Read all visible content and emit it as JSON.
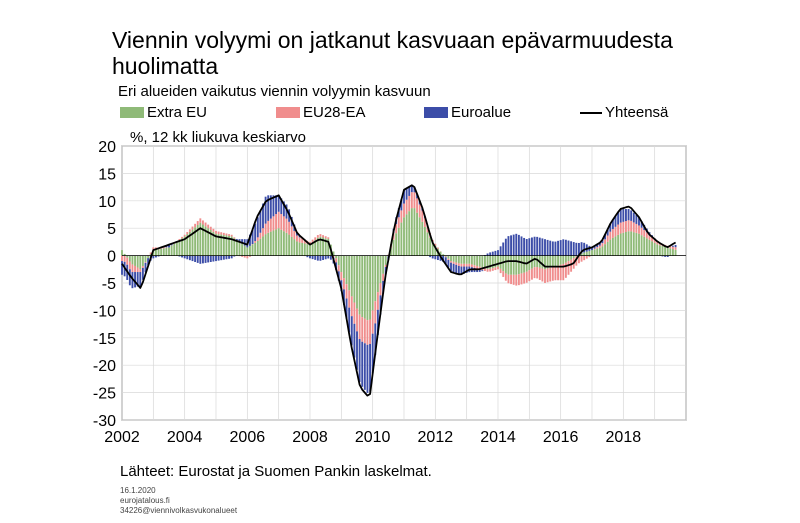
{
  "header": {
    "title": "Viennin volyymi on jatkanut kasvuaan epävarmuudesta huolimatta",
    "subtitle": "Eri alueiden vaikutus viennin volyymin kasvuun",
    "unit_label": "%, 12 kk liukuva keskiarvo"
  },
  "legend": [
    {
      "label": "Extra EU",
      "color": "#8fba78"
    },
    {
      "label": "EU28-EA",
      "color": "#f08d8d"
    },
    {
      "label": "Euroalue",
      "color": "#3c4da8"
    },
    {
      "label": "Yhteensä",
      "color": "#000000"
    }
  ],
  "footer": {
    "source": "Lähteet: Eurostat ja Suomen Pankin laskelmat.",
    "date": "16.1.2020",
    "site": "eurojatalous.fi",
    "code": "34226@viennivolkasvukonalueet"
  },
  "chart_data": {
    "type": "bar",
    "stacked": true,
    "x_range": [
      2002,
      2020
    ],
    "x_ticks": [
      "2002",
      "2004",
      "2006",
      "2008",
      "2010",
      "2012",
      "2014",
      "2016",
      "2018"
    ],
    "ylim": [
      -30,
      20
    ],
    "y_ticks": [
      "20",
      "15",
      "10",
      "5",
      "0",
      "-5",
      "-10",
      "-15",
      "-20",
      "-25",
      "-30"
    ],
    "grid": true,
    "anchors": {
      "t": [
        2002.0,
        2002.3,
        2002.6,
        2003.0,
        2003.5,
        2004.0,
        2004.5,
        2005.0,
        2005.5,
        2006.0,
        2006.3,
        2006.6,
        2007.0,
        2007.3,
        2007.6,
        2008.0,
        2008.3,
        2008.6,
        2009.0,
        2009.3,
        2009.6,
        2009.9,
        2010.1,
        2010.4,
        2010.7,
        2011.0,
        2011.3,
        2011.6,
        2011.9,
        2012.2,
        2012.5,
        2012.8,
        2013.1,
        2013.4,
        2013.7,
        2014.0,
        2014.3,
        2014.6,
        2014.9,
        2015.2,
        2015.5,
        2015.8,
        2016.1,
        2016.4,
        2016.7,
        2017.0,
        2017.3,
        2017.6,
        2017.9,
        2018.2,
        2018.5,
        2018.8,
        2019.1,
        2019.4,
        2019.7
      ],
      "extra": [
        1.0,
        -1.5,
        -2.5,
        1.0,
        1.5,
        3.5,
        6.0,
        4.0,
        3.5,
        1.5,
        2.5,
        4.0,
        5.0,
        4.0,
        2.5,
        2.0,
        3.5,
        3.0,
        -3.0,
        -7.0,
        -11.0,
        -12.0,
        -8.0,
        -2.0,
        3.5,
        7.0,
        9.0,
        6.0,
        2.5,
        0.5,
        -1.0,
        -1.5,
        -1.5,
        -2.0,
        -2.5,
        -2.0,
        -3.5,
        -3.5,
        -3.0,
        -2.0,
        -2.5,
        -2.0,
        -1.5,
        -0.5,
        0.5,
        1.0,
        1.5,
        3.0,
        4.0,
        4.5,
        4.0,
        3.0,
        2.0,
        1.5,
        1.0
      ],
      "eu28": [
        -1.0,
        -1.5,
        -0.5,
        0.5,
        0.0,
        0.3,
        0.8,
        0.5,
        0.3,
        -0.5,
        0.5,
        2.0,
        3.0,
        2.5,
        1.0,
        0.5,
        0.5,
        0.3,
        -1.5,
        -3.5,
        -4.5,
        -4.5,
        -4.0,
        -0.5,
        1.5,
        2.5,
        3.0,
        2.0,
        0.5,
        0.0,
        -0.3,
        -0.5,
        -0.5,
        -0.5,
        -0.5,
        -0.5,
        -1.5,
        -2.0,
        -2.0,
        -2.0,
        -2.5,
        -2.5,
        -3.0,
        -2.0,
        -1.0,
        0.0,
        0.5,
        1.5,
        2.0,
        2.0,
        1.5,
        1.0,
        0.5,
        0.3,
        0.5
      ],
      "euro": [
        -2.5,
        -3.0,
        -2.5,
        -0.5,
        0.5,
        -0.5,
        -1.5,
        -1.0,
        -0.5,
        1.5,
        3.5,
        5.0,
        3.0,
        2.5,
        0.5,
        -0.5,
        -1.0,
        -0.5,
        -2.0,
        -5.0,
        -8.0,
        -9.0,
        -5.5,
        -1.5,
        1.0,
        2.5,
        1.0,
        0.5,
        -0.5,
        -1.0,
        -1.5,
        -1.5,
        -1.0,
        -0.5,
        0.5,
        1.0,
        3.5,
        4.0,
        3.0,
        3.5,
        3.0,
        2.5,
        3.0,
        2.5,
        2.0,
        0.5,
        0.5,
        1.5,
        2.5,
        2.0,
        1.5,
        0.5,
        0.0,
        -0.3,
        0.5
      ],
      "total": [
        -1.5,
        -4.0,
        -6.0,
        1.0,
        2.0,
        3.0,
        5.0,
        3.5,
        3.0,
        2.0,
        7.0,
        10.0,
        11.0,
        8.0,
        4.0,
        2.0,
        3.0,
        2.5,
        -6.0,
        -16.0,
        -24.0,
        -26.0,
        -17.0,
        -4.0,
        5.5,
        12.0,
        13.0,
        8.5,
        2.5,
        -0.5,
        -3.0,
        -3.5,
        -2.5,
        -2.5,
        -2.0,
        -1.5,
        -1.0,
        -1.0,
        -1.5,
        -0.5,
        -2.0,
        -2.0,
        -2.0,
        -1.5,
        1.0,
        1.5,
        2.5,
        6.0,
        8.5,
        9.0,
        7.0,
        4.0,
        2.5,
        1.5,
        2.5
      ]
    }
  }
}
